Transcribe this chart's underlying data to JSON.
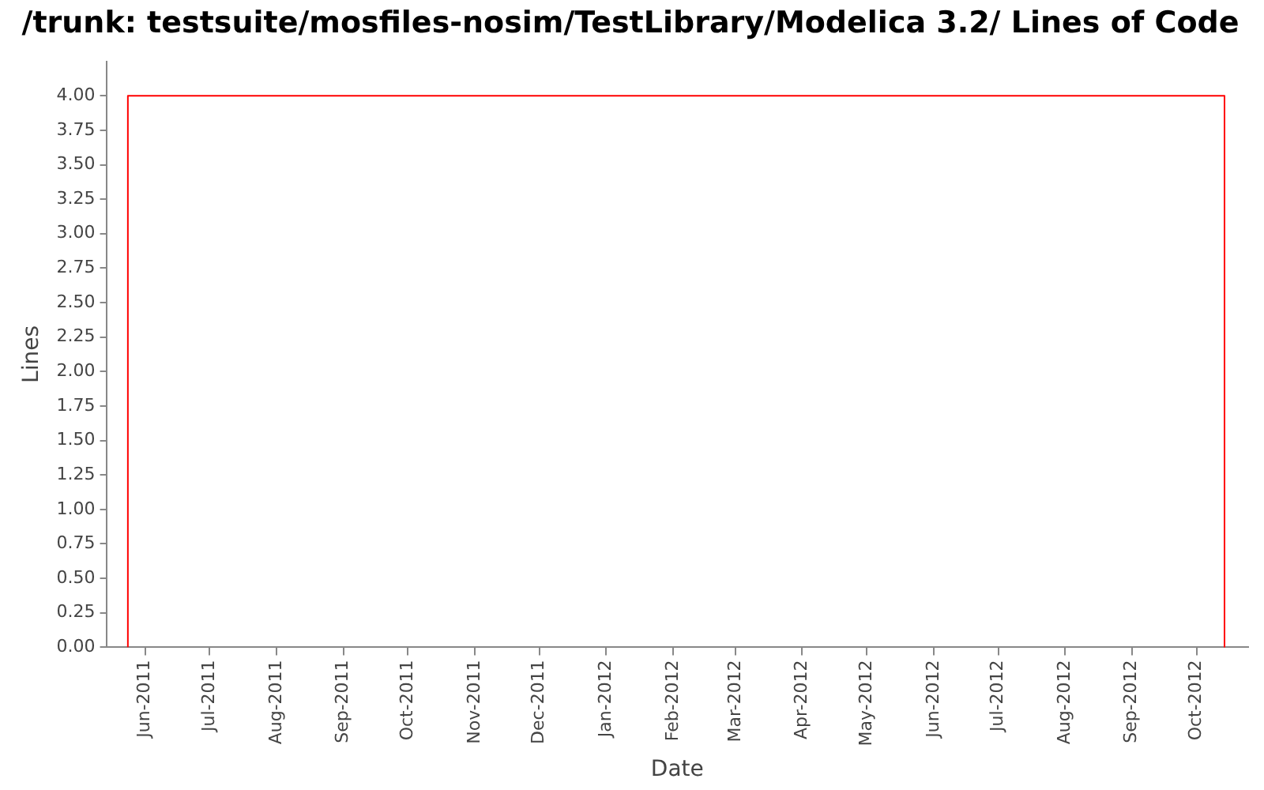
{
  "chart_data": {
    "type": "line",
    "title": "/trunk: testsuite/mosfiles-nosim/TestLibrary/Modelica 3.2/ Lines of Code",
    "xlabel": "Date",
    "ylabel": "Lines",
    "x": [
      "2011-05-24",
      "2011-05-24",
      "2012-10-14",
      "2012-10-14"
    ],
    "series": [
      {
        "color": "#ff0000",
        "values": [
          0,
          4,
          4,
          0
        ]
      }
    ],
    "xlim": [
      "2011-05-14",
      "2012-10-25"
    ],
    "xticks": [
      {
        "value": "2011-06-01",
        "label": "Jun-2011"
      },
      {
        "value": "2011-07-01",
        "label": "Jul-2011"
      },
      {
        "value": "2011-08-01",
        "label": "Aug-2011"
      },
      {
        "value": "2011-09-01",
        "label": "Sep-2011"
      },
      {
        "value": "2011-10-01",
        "label": "Oct-2011"
      },
      {
        "value": "2011-11-01",
        "label": "Nov-2011"
      },
      {
        "value": "2011-12-01",
        "label": "Dec-2011"
      },
      {
        "value": "2012-01-01",
        "label": "Jan-2012"
      },
      {
        "value": "2012-02-01",
        "label": "Feb-2012"
      },
      {
        "value": "2012-03-01",
        "label": "Mar-2012"
      },
      {
        "value": "2012-04-01",
        "label": "Apr-2012"
      },
      {
        "value": "2012-05-01",
        "label": "May-2012"
      },
      {
        "value": "2012-06-01",
        "label": "Jun-2012"
      },
      {
        "value": "2012-07-01",
        "label": "Jul-2012"
      },
      {
        "value": "2012-08-01",
        "label": "Aug-2012"
      },
      {
        "value": "2012-09-01",
        "label": "Sep-2012"
      },
      {
        "value": "2012-10-01",
        "label": "Oct-2012"
      }
    ],
    "ylim": [
      0,
      4.25
    ],
    "yticks": [
      {
        "value": 0,
        "label": "0.00"
      },
      {
        "value": 0.25,
        "label": "0.25"
      },
      {
        "value": 0.5,
        "label": "0.50"
      },
      {
        "value": 0.75,
        "label": "0.75"
      },
      {
        "value": 1,
        "label": "1.00"
      },
      {
        "value": 1.25,
        "label": "1.25"
      },
      {
        "value": 1.5,
        "label": "1.50"
      },
      {
        "value": 1.75,
        "label": "1.75"
      },
      {
        "value": 2,
        "label": "2.00"
      },
      {
        "value": 2.25,
        "label": "2.25"
      },
      {
        "value": 2.5,
        "label": "2.50"
      },
      {
        "value": 2.75,
        "label": "2.75"
      },
      {
        "value": 3,
        "label": "3.00"
      },
      {
        "value": 3.25,
        "label": "3.25"
      },
      {
        "value": 3.5,
        "label": "3.50"
      },
      {
        "value": 3.75,
        "label": "3.75"
      },
      {
        "value": 4,
        "label": "4.00"
      }
    ],
    "grid": false,
    "legend": false,
    "marker": "none",
    "line_style": "solid"
  }
}
